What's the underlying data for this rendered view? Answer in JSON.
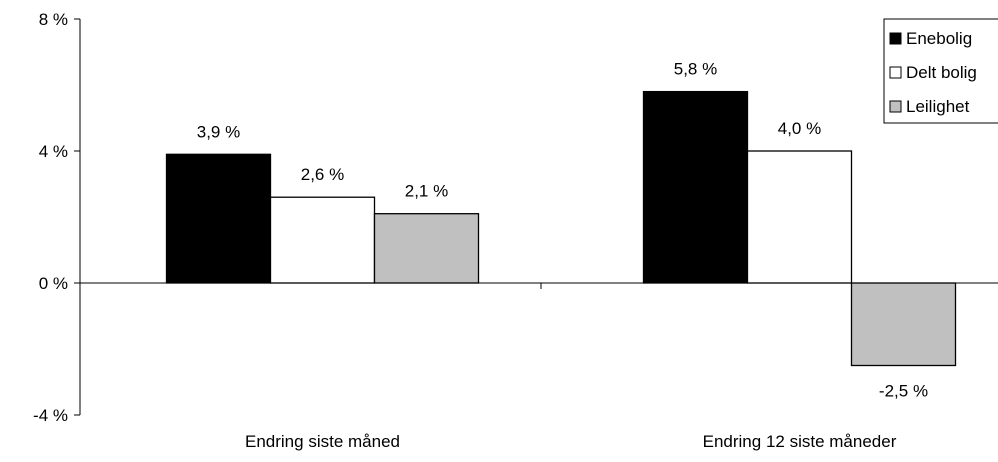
{
  "chart_data": {
    "type": "bar",
    "categories": [
      "Endring siste måned",
      "Endring 12 siste måneder"
    ],
    "series": [
      {
        "name": "Enebolig",
        "values": [
          3.9,
          5.8
        ],
        "labels": [
          "3,9 %",
          "5,8 %"
        ],
        "color": "#000000"
      },
      {
        "name": "Delt bolig",
        "values": [
          2.6,
          4.0
        ],
        "labels": [
          "2,6 %",
          "4,0 %"
        ],
        "color": "#ffffff"
      },
      {
        "name": "Leilighet",
        "values": [
          2.1,
          -2.5
        ],
        "labels": [
          "2,1 %",
          "-2,5 %"
        ],
        "color": "#c0c0c0"
      }
    ],
    "yticks": [
      {
        "value": 8,
        "label": "8 %"
      },
      {
        "value": 4,
        "label": "4 %"
      },
      {
        "value": 0,
        "label": "0 %"
      },
      {
        "value": -4,
        "label": "-4 %"
      }
    ],
    "ylim": [
      -4,
      8
    ],
    "grid": false,
    "legend_position": "top-right"
  }
}
